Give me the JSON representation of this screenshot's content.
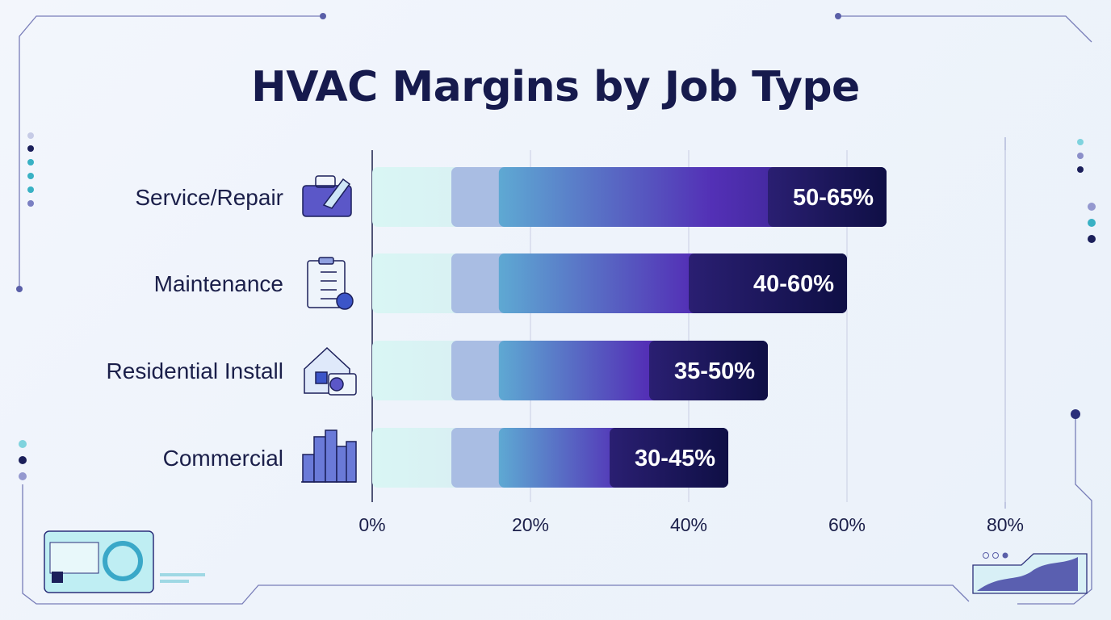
{
  "chart_data": {
    "type": "bar",
    "orientation": "horizontal",
    "title": "HVAC Margins by Job Type",
    "xlabel": "",
    "ylabel": "",
    "xlim": [
      0,
      80
    ],
    "x_ticks": [
      0,
      20,
      40,
      60,
      80
    ],
    "x_tick_labels": [
      "0%",
      "20%",
      "40%",
      "60%",
      "80%"
    ],
    "grid": true,
    "categories": [
      "Service/Repair",
      "Maintenance",
      "Residential Install",
      "Commercial"
    ],
    "icons": [
      "toolbox-wrench-icon",
      "clipboard-checklist-icon",
      "house-ac-unit-icon",
      "city-buildings-icon"
    ],
    "ranges": [
      [
        50,
        65
      ],
      [
        40,
        60
      ],
      [
        35,
        50
      ],
      [
        30,
        45
      ]
    ],
    "value_labels": [
      "50-65%",
      "40-60%",
      "35-50%",
      "30-45%"
    ],
    "colors": {
      "light": "#dff5f5",
      "mid": "#6aa6d2",
      "purple": "#5a2fb8",
      "dark": "#14124a",
      "text": "#161a4d"
    }
  }
}
